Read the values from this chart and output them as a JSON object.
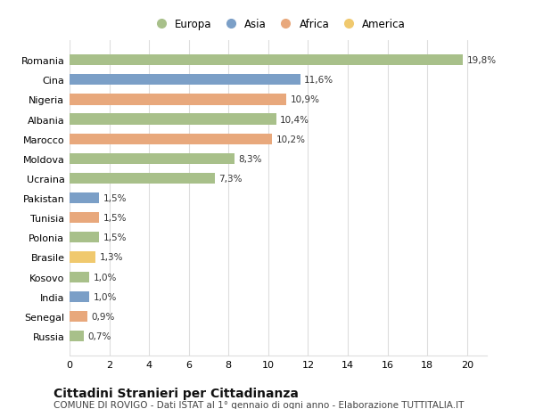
{
  "countries": [
    "Romania",
    "Cina",
    "Nigeria",
    "Albania",
    "Marocco",
    "Moldova",
    "Ucraina",
    "Pakistan",
    "Tunisia",
    "Polonia",
    "Brasile",
    "Kosovo",
    "India",
    "Senegal",
    "Russia"
  ],
  "values": [
    19.8,
    11.6,
    10.9,
    10.4,
    10.2,
    8.3,
    7.3,
    1.5,
    1.5,
    1.5,
    1.3,
    1.0,
    1.0,
    0.9,
    0.7
  ],
  "labels": [
    "19,8%",
    "11,6%",
    "10,9%",
    "10,4%",
    "10,2%",
    "8,3%",
    "7,3%",
    "1,5%",
    "1,5%",
    "1,5%",
    "1,3%",
    "1,0%",
    "1,0%",
    "0,9%",
    "0,7%"
  ],
  "continents": [
    "Europa",
    "Asia",
    "Africa",
    "Europa",
    "Africa",
    "Europa",
    "Europa",
    "Asia",
    "Africa",
    "Europa",
    "America",
    "Europa",
    "Asia",
    "Africa",
    "Europa"
  ],
  "colors": {
    "Europa": "#a8c08a",
    "Asia": "#7b9fc7",
    "Africa": "#e8a87c",
    "America": "#f0c96e"
  },
  "legend_order": [
    "Europa",
    "Asia",
    "Africa",
    "America"
  ],
  "xlim": [
    0,
    21
  ],
  "xticks": [
    0,
    2,
    4,
    6,
    8,
    10,
    12,
    14,
    16,
    18,
    20
  ],
  "title": "Cittadini Stranieri per Cittadinanza",
  "subtitle": "COMUNE DI ROVIGO - Dati ISTAT al 1° gennaio di ogni anno - Elaborazione TUTTITALIA.IT",
  "bg_color": "#ffffff",
  "grid_color": "#dddddd",
  "bar_height": 0.55,
  "label_fontsize": 7.5,
  "title_fontsize": 10,
  "subtitle_fontsize": 7.5,
  "ytick_fontsize": 8,
  "xtick_fontsize": 8,
  "legend_fontsize": 8.5
}
